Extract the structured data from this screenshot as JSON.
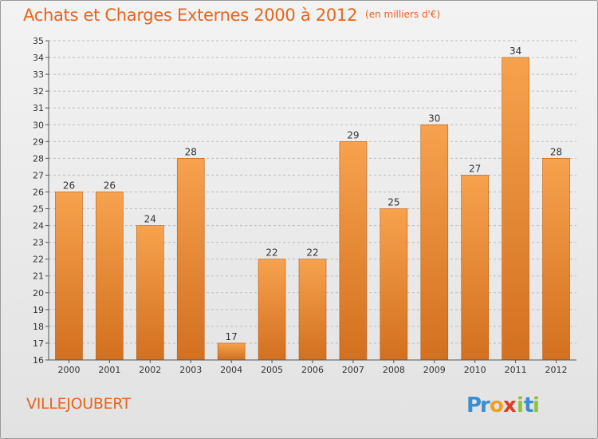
{
  "chart_data": {
    "type": "bar",
    "title": "Achats et Charges Externes 2000 à 2012",
    "unit_label": "(en milliers d'€)",
    "categories": [
      "2000",
      "2001",
      "2002",
      "2003",
      "2004",
      "2005",
      "2006",
      "2007",
      "2008",
      "2009",
      "2010",
      "2011",
      "2012"
    ],
    "values": [
      26,
      26,
      24,
      28,
      17,
      22,
      22,
      29,
      25,
      30,
      27,
      34,
      28
    ],
    "data_labels": [
      "26",
      "26",
      "24",
      "28",
      "17",
      "22",
      "22",
      "29",
      "25",
      "30",
      "27",
      "34",
      "28"
    ],
    "ylim": [
      16,
      35
    ],
    "yticks": [
      16,
      17,
      18,
      19,
      20,
      21,
      22,
      23,
      24,
      25,
      26,
      27,
      28,
      29,
      30,
      31,
      32,
      33,
      34,
      35
    ],
    "ytick_labels": [
      "16",
      "17",
      "18",
      "19",
      "20",
      "21",
      "22",
      "23",
      "24",
      "25",
      "26",
      "27",
      "28",
      "29",
      "30",
      "31",
      "32",
      "33",
      "34",
      "35"
    ],
    "grid": "horizontal dashed",
    "legend": "none",
    "colors": {
      "bar_top": "#f7a24e",
      "bar_bottom": "#d2701f",
      "bar_edge": "#b85d12",
      "text_accent": "#e8641b",
      "axis": "#555555",
      "grid": "#bdbdbd"
    }
  },
  "footer": {
    "commune": "VILLEJOUBERT",
    "logo_text": "Proxiti",
    "logo_letters": [
      {
        "ch": "P",
        "color": "#3a8fd0"
      },
      {
        "ch": "r",
        "color": "#3a8fd0"
      },
      {
        "ch": "o",
        "color": "#f0a020"
      },
      {
        "ch": "x",
        "color": "#e03c28"
      },
      {
        "ch": "i",
        "color": "#8cc43c"
      },
      {
        "ch": "t",
        "color": "#3a8fd0"
      },
      {
        "ch": "i",
        "color": "#8cc43c"
      }
    ]
  }
}
